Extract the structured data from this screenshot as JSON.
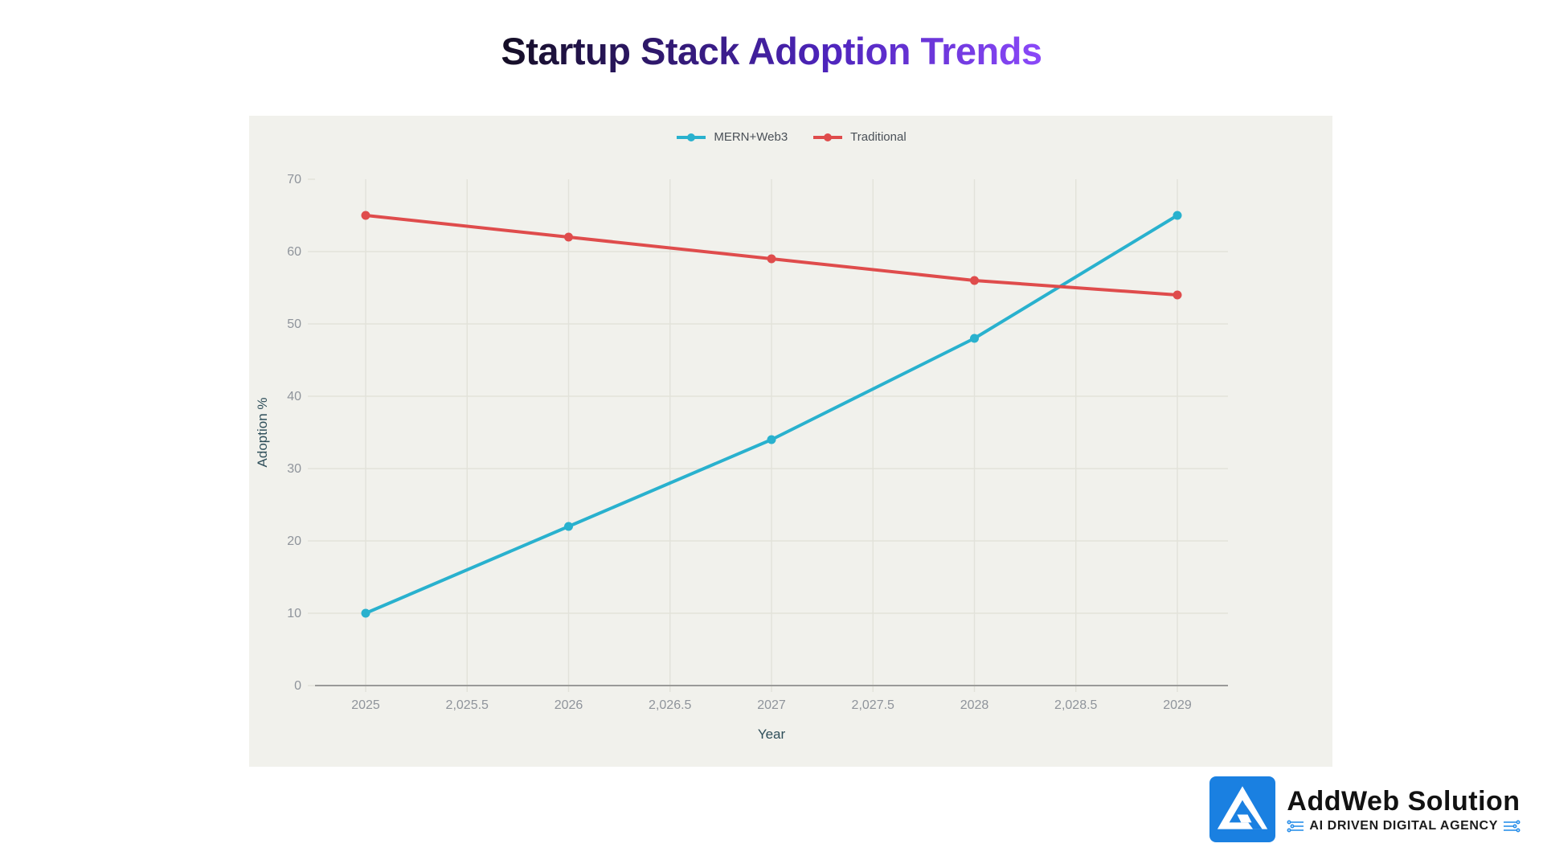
{
  "page": {
    "background": "#ffffff"
  },
  "title": {
    "text": "Startup Stack Adoption Trends",
    "gradient_from": "#140e24",
    "gradient_mid": "#4d24bb",
    "gradient_to": "#8b49f9"
  },
  "chart_data": {
    "type": "line",
    "title": "Startup Stack Adoption Trends",
    "xlabel": "Year",
    "ylabel": "Adoption %",
    "x": [
      2025,
      2026,
      2027,
      2028,
      2029
    ],
    "series": [
      {
        "name": "MERN+Web3",
        "color": "#29b1ce",
        "values": [
          10,
          22,
          34,
          48,
          65
        ]
      },
      {
        "name": "Traditional",
        "color": "#df4c4c",
        "values": [
          65,
          62,
          59,
          56,
          54
        ]
      }
    ],
    "ylim": [
      0,
      70
    ],
    "y_ticks": [
      0,
      10,
      20,
      30,
      40,
      50,
      60,
      70
    ],
    "x_ticks": [
      2025,
      2025.5,
      2026,
      2026.5,
      2027,
      2027.5,
      2028,
      2028.5,
      2029
    ],
    "x_tick_labels": [
      "2025",
      "2,025.5",
      "2026",
      "2,026.5",
      "2027",
      "2,027.5",
      "2028",
      "2,028.5",
      "2029"
    ],
    "legend_position": "top-center",
    "grid": true,
    "marker": "dot",
    "panel_background": "#f1f1ec",
    "grid_color": "#e2e2da",
    "axis_line_color": "#9a9a98",
    "tick_label_color": "#8f949b",
    "axis_title_color": "#2f4f5a",
    "legend_text_color": "#4a5057"
  },
  "logo": {
    "brand": "AddWeb Solution",
    "tagline": "AI DRIVEN DIGITAL AGENCY",
    "icon_letter": "A",
    "icon_background": "#1a80e1",
    "icon_letter_color": "#ffffff",
    "brand_color": "#121212",
    "tagline_color": "#1c1c1c",
    "accent_color": "#2a8fe9"
  }
}
